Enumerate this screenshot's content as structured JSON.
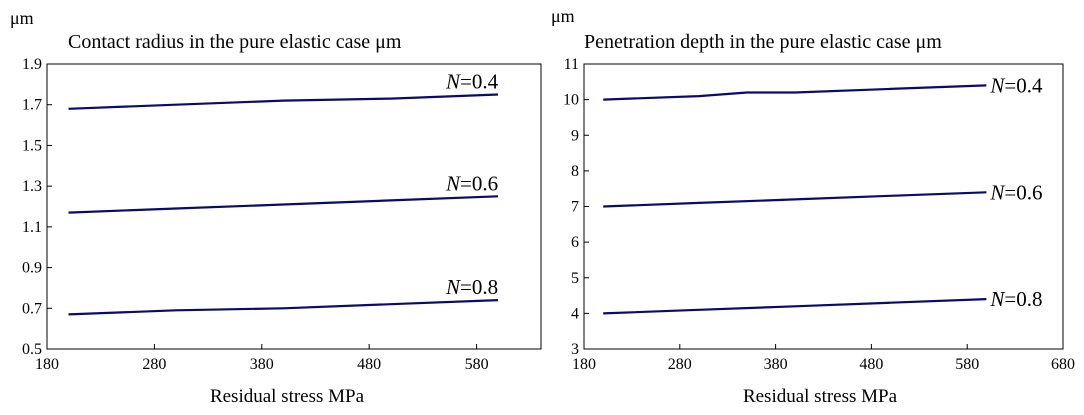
{
  "chart_data": [
    {
      "type": "line",
      "unit_label": "μm",
      "title": "Contact radius in the pure elastic case μm",
      "xlabel": "Residual stress MPa",
      "ylabel": "",
      "xlim": [
        180,
        640
      ],
      "ylim": [
        0.5,
        1.9
      ],
      "xticks": [
        180,
        280,
        380,
        480,
        580
      ],
      "xtick_labels": [
        "180",
        "280",
        "380",
        "480",
        "580"
      ],
      "yticks": [
        0.5,
        0.7,
        0.9,
        1.1,
        1.3,
        1.5,
        1.7,
        1.9
      ],
      "ytick_labels": [
        "0.5",
        "0.7",
        "0.9",
        "1.1",
        "1.3",
        "1.5",
        "1.7",
        "1.9"
      ],
      "grid": false,
      "series": [
        {
          "name": "N=0.4",
          "label_var": "N",
          "label_val": "=0.4",
          "x": [
            200,
            300,
            400,
            500,
            600
          ],
          "y": [
            1.68,
            1.7,
            1.72,
            1.73,
            1.75
          ]
        },
        {
          "name": "N=0.6",
          "label_var": "N",
          "label_val": "=0.6",
          "x": [
            200,
            300,
            400,
            500,
            600
          ],
          "y": [
            1.17,
            1.19,
            1.21,
            1.23,
            1.25
          ]
        },
        {
          "name": "N=0.8",
          "label_var": "N",
          "label_val": "=0.8",
          "x": [
            200,
            300,
            400,
            500,
            600
          ],
          "y": [
            0.67,
            0.69,
            0.7,
            0.72,
            0.74
          ]
        }
      ],
      "colors": {
        "line": "#0a0a6e"
      }
    },
    {
      "type": "line",
      "unit_label": "μm",
      "title": "Penetration depth in the pure elastic case μm",
      "xlabel": "Residual stress MPa",
      "ylabel": "",
      "xlim": [
        180,
        680
      ],
      "ylim": [
        3,
        11
      ],
      "xticks": [
        180,
        280,
        380,
        480,
        580,
        680
      ],
      "xtick_labels": [
        "180",
        "280",
        "380",
        "480",
        "580",
        "680"
      ],
      "yticks": [
        3,
        4,
        5,
        6,
        7,
        8,
        9,
        10,
        11
      ],
      "ytick_labels": [
        "3",
        "4",
        "5",
        "6",
        "7",
        "8",
        "9",
        "10",
        "11"
      ],
      "grid": false,
      "series": [
        {
          "name": "N=0.4",
          "label_var": "N",
          "label_val": "=0.4",
          "x": [
            200,
            300,
            350,
            400,
            500,
            600
          ],
          "y": [
            10.0,
            10.1,
            10.2,
            10.2,
            10.3,
            10.4
          ]
        },
        {
          "name": "N=0.6",
          "label_var": "N",
          "label_val": "=0.6",
          "x": [
            200,
            300,
            400,
            500,
            600
          ],
          "y": [
            7.0,
            7.1,
            7.2,
            7.3,
            7.4
          ]
        },
        {
          "name": "N=0.8",
          "label_var": "N",
          "label_val": "=0.8",
          "x": [
            200,
            300,
            400,
            500,
            600
          ],
          "y": [
            4.0,
            4.1,
            4.2,
            4.3,
            4.4
          ]
        }
      ],
      "colors": {
        "line": "#0a0a6e"
      }
    }
  ]
}
